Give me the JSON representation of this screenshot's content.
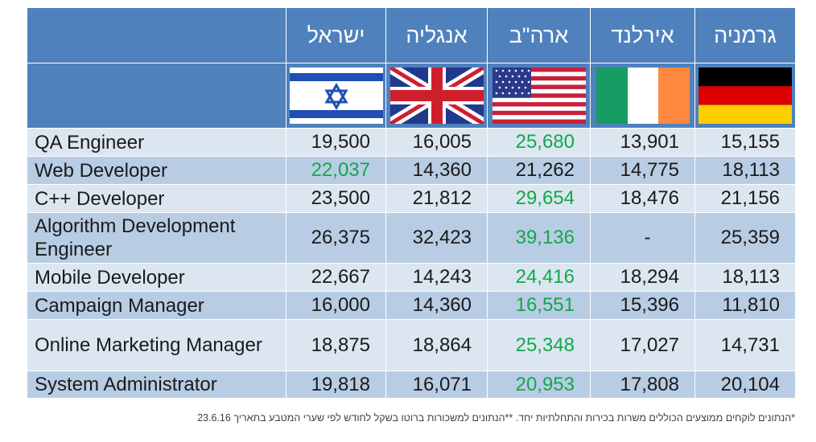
{
  "chart_data": {
    "type": "table",
    "columns": [
      "ישראל",
      "אנגליה",
      "ארה\"ב",
      "אירלנד",
      "גרמניה"
    ],
    "flags": [
      "israel-flag-icon",
      "uk-flag-icon",
      "usa-flag-icon",
      "ireland-flag-icon",
      "germany-flag-icon"
    ],
    "highlight_color": "#12a84a",
    "header_color": "#4f81bd",
    "rows": [
      {
        "role": "QA Engineer",
        "values": [
          "19,500",
          "16,005",
          "25,680",
          "13,901",
          "15,155"
        ],
        "highlight": 2
      },
      {
        "role": "Web Developer",
        "values": [
          "22,037",
          "14,360",
          "21,262",
          "14,775",
          "18,113"
        ],
        "highlight": 0
      },
      {
        "role": "C++ Developer",
        "values": [
          "23,500",
          "21,812",
          "29,654",
          "18,476",
          "21,156"
        ],
        "highlight": 2
      },
      {
        "role": "Algorithm Development Engineer",
        "values": [
          "26,375",
          "32,423",
          "39,136",
          "-",
          "25,359"
        ],
        "highlight": 2
      },
      {
        "role": "Mobile Developer",
        "values": [
          "22,667",
          "14,243",
          "24,416",
          "18,294",
          "18,113"
        ],
        "highlight": 2
      },
      {
        "role": "Campaign Manager",
        "values": [
          "16,000",
          "14,360",
          "16,551",
          "15,396",
          "11,810"
        ],
        "highlight": 2
      },
      {
        "role": "Online Marketing Manager",
        "values": [
          "18,875",
          "18,864",
          "25,348",
          "17,027",
          "14,731"
        ],
        "highlight": 2
      },
      {
        "role": "System Administrator",
        "values": [
          "19,818",
          "16,071",
          "20,953",
          "17,808",
          "20,104"
        ],
        "highlight": 2
      }
    ]
  },
  "footnote": "*הנתונים לוקחים ממוצעים הכוללים משרות בכירות והתחלתיות יחד.  **הנתונים למשכורות ברוטו בשקל לחודש לפי שערי המטבע בתאריך 23.6.16"
}
